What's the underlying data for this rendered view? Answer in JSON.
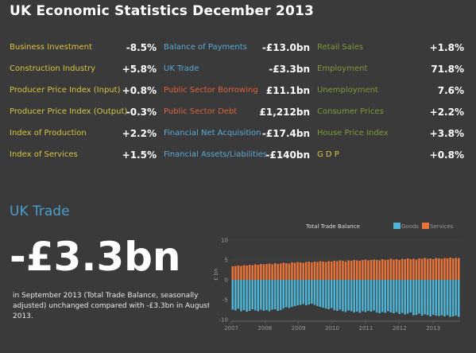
{
  "title": "UK Economic Statistics December 2013",
  "stats": [
    {
      "items": [
        {
          "label": "Business Investment",
          "value": "-8.5%"
        },
        {
          "label": "Construction Industry",
          "value": "+5.8%"
        },
        {
          "label": "Producer Price Index (Input)",
          "value": "+0.8%"
        },
        {
          "label": "Producer Price Index (Output)",
          "value": "-0.3%"
        },
        {
          "label": "Index of Production",
          "value": "+2.2%"
        },
        {
          "label": "Index of Services",
          "value": "+1.5%"
        }
      ]
    },
    {
      "items": [
        {
          "label": "Balance of Payments",
          "value": "-£13.0bn"
        },
        {
          "label": "UK Trade",
          "value": "-£3.3bn"
        },
        {
          "label": "Public Sector Borrowing",
          "value": "£11.1bn"
        },
        {
          "label": "Public Sector Debt",
          "value": "£1,212bn"
        },
        {
          "label": "Financial Net Acquisition",
          "value": "-£17.4bn"
        },
        {
          "label": "Financial Assets/Liabilities",
          "value": "-£140bn"
        }
      ]
    },
    {
      "items": [
        {
          "label": "Retail Sales",
          "value": "+1.8%"
        },
        {
          "label": "Employment",
          "value": "71.8%"
        },
        {
          "label": "Unemployment",
          "value": "7.6%"
        },
        {
          "label": "Consumer Prices",
          "value": "+2.2%"
        },
        {
          "label": "House Price Index",
          "value": "+3.8%"
        },
        {
          "label": "G D P",
          "value": "+0.8%"
        }
      ]
    }
  ],
  "colors": {
    "background": "#3a3a3a",
    "col1_label": "#d8c542",
    "col2_blue": "#5aa9d6",
    "col2_red": "#e0603a",
    "col3_label": "#7d9a3a",
    "goods": "#4fb3d3",
    "services": "#e8743b"
  },
  "trade": {
    "heading": "UK Trade",
    "value": "-£3.3bn",
    "description": "in September 2013 (Total Trade Balance, seasonally adjusted) unchanged compared with -£3.3bn in August 2013."
  },
  "chart_data": {
    "type": "bar",
    "title": "Total Trade Balance",
    "ylabel": "£ bn",
    "ylim": [
      -10,
      10
    ],
    "y_ticks": [
      "10",
      "5",
      "0",
      "-5",
      "-10"
    ],
    "x_ticks": [
      "2007",
      "2008",
      "2009",
      "2010",
      "2011",
      "2012",
      "2013"
    ],
    "legend": [
      "Goods",
      "Services"
    ],
    "series": [
      {
        "name": "Goods",
        "values": [
          -7.5,
          -7.7,
          -7.3,
          -7.9,
          -7.6,
          -8.0,
          -7.8,
          -7.4,
          -7.7,
          -7.9,
          -7.5,
          -7.8,
          -7.6,
          -7.9,
          -7.5,
          -7.4,
          -7.8,
          -7.6,
          -7.2,
          -6.9,
          -7.1,
          -6.8,
          -6.6,
          -6.4,
          -6.3,
          -6.1,
          -6.4,
          -6.2,
          -6.0,
          -6.3,
          -6.6,
          -6.8,
          -7.0,
          -7.2,
          -7.4,
          -7.1,
          -7.6,
          -7.8,
          -7.5,
          -7.9,
          -8.1,
          -7.7,
          -7.9,
          -8.2,
          -8.0,
          -8.3,
          -7.9,
          -8.1,
          -7.8,
          -8.0,
          -7.7,
          -8.2,
          -8.4,
          -8.1,
          -8.3,
          -7.9,
          -8.2,
          -8.4,
          -8.1,
          -8.6,
          -8.3,
          -8.7,
          -8.5,
          -8.2,
          -8.9,
          -8.8,
          -8.5,
          -9.0,
          -8.7,
          -8.9,
          -9.2,
          -8.8,
          -9.0,
          -9.1,
          -8.9,
          -9.2,
          -8.9,
          -9.3,
          -9.2,
          -9.0,
          -9.3
        ]
      },
      {
        "name": "Services",
        "values": [
          3.4,
          3.5,
          3.6,
          3.5,
          3.7,
          3.6,
          3.8,
          3.7,
          3.9,
          3.8,
          4.0,
          3.9,
          4.0,
          4.1,
          3.9,
          4.2,
          4.0,
          4.1,
          4.3,
          4.2,
          4.1,
          4.4,
          4.3,
          4.5,
          4.4,
          4.3,
          4.5,
          4.6,
          4.4,
          4.6,
          4.5,
          4.7,
          4.6,
          4.5,
          4.7,
          4.6,
          4.8,
          4.7,
          4.9,
          4.8,
          4.6,
          4.9,
          4.8,
          5.0,
          4.9,
          4.8,
          5.0,
          5.1,
          4.9,
          5.0,
          5.1,
          5.0,
          4.9,
          5.2,
          5.0,
          5.1,
          5.3,
          5.1,
          5.2,
          5.0,
          5.3,
          5.2,
          5.4,
          5.2,
          5.3,
          5.1,
          5.4,
          5.3,
          5.5,
          5.3,
          5.4,
          5.2,
          5.5,
          5.4,
          5.3,
          5.5,
          5.4,
          5.6,
          5.4,
          5.5,
          5.5
        ]
      }
    ]
  }
}
